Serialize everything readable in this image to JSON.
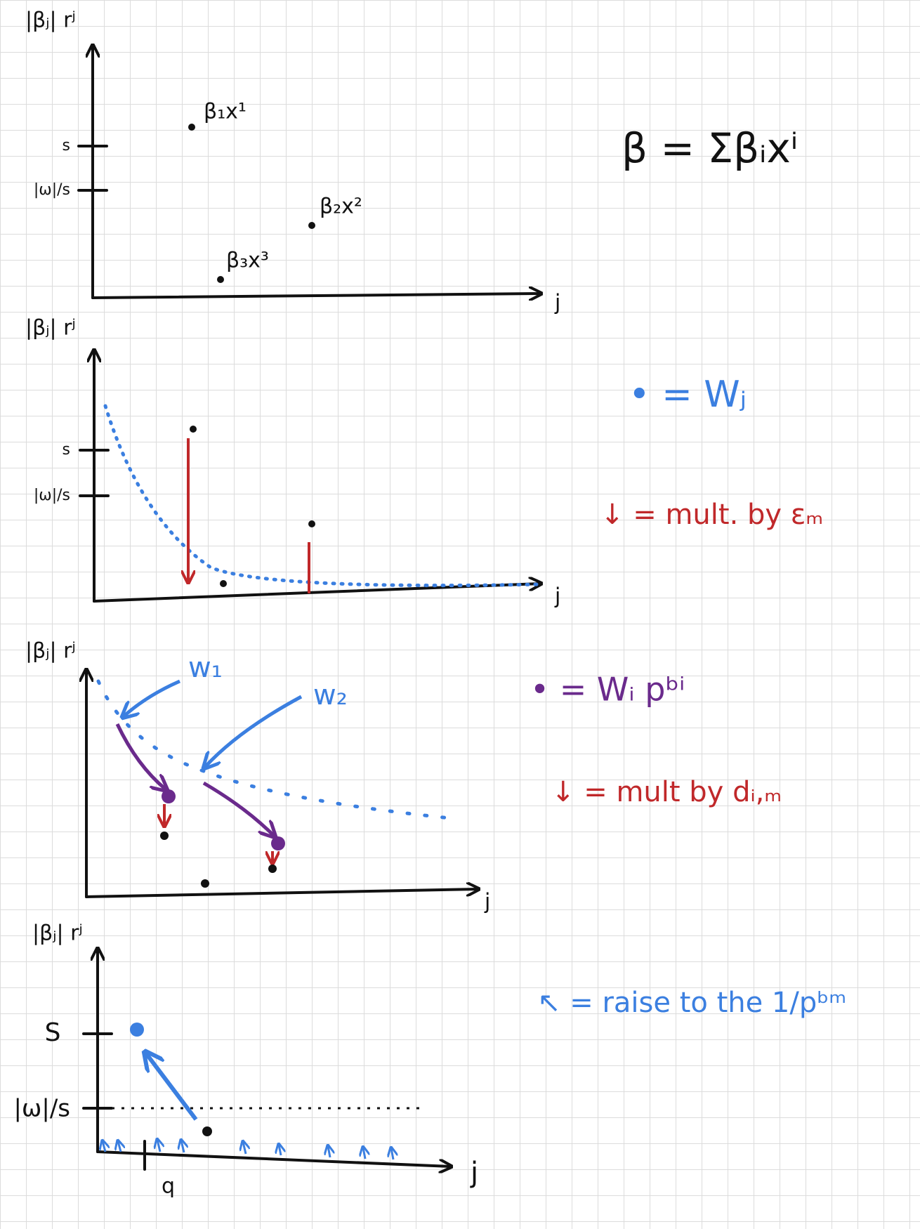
{
  "panels": [
    {
      "y_label": "|βⱼ| rʲ",
      "y_ticks": [
        "s",
        "|ω|/s"
      ],
      "x_label": "j",
      "annotations": [
        "β₁x¹",
        "β₂x²",
        "β₃x³"
      ]
    },
    {
      "y_label": "|βⱼ| rʲ",
      "y_ticks": [
        "s",
        "|ω|/s"
      ],
      "x_label": "j"
    },
    {
      "y_label": "|βⱼ| rʲ",
      "x_label": "j",
      "annotations": [
        "w₁",
        "w₂"
      ]
    },
    {
      "y_label": "|βⱼ| rʲ",
      "y_ticks": [
        "S",
        "|ω|/s"
      ],
      "x_label": "j",
      "annotations": [
        "q"
      ]
    }
  ],
  "formula": "β = Σβᵢxⁱ",
  "legend": [
    "• = Wⱼ",
    "↓ = mult. by εₘ",
    "• = Wᵢ pᵇⁱ",
    "↓ = mult by dᵢ,ₘ",
    "↖ = raise to the 1/pᵇᵐ"
  ]
}
